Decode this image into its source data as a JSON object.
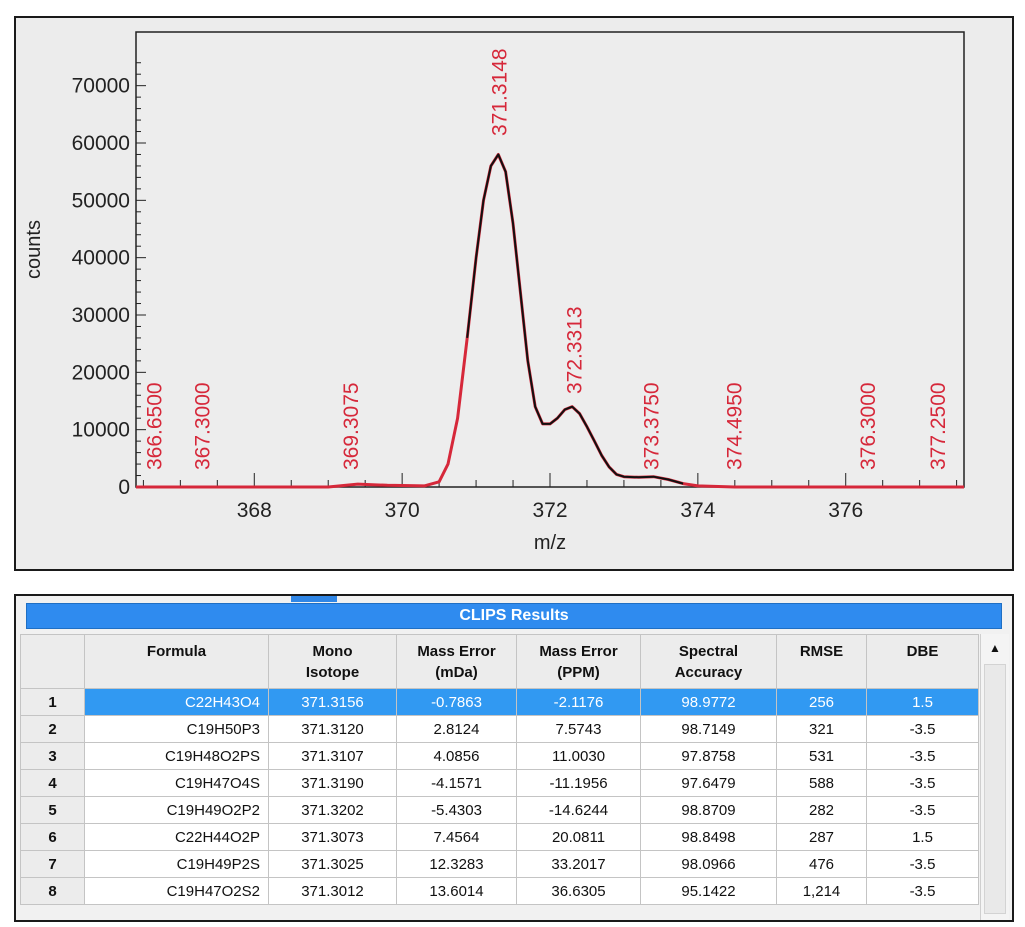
{
  "chart_data": {
    "type": "line",
    "xlabel": "m/z",
    "ylabel": "counts",
    "xlim": [
      366.4,
      377.6
    ],
    "ylim": [
      0,
      75000
    ],
    "x_ticks": [
      368,
      370,
      372,
      374,
      376
    ],
    "y_ticks": [
      0,
      10000,
      20000,
      30000,
      40000,
      50000,
      60000,
      70000
    ],
    "x_tick_labels": [
      "368",
      "370",
      "372",
      "374",
      "376"
    ],
    "y_tick_labels": [
      "0",
      "10000",
      "20000",
      "30000",
      "40000",
      "50000",
      "60000",
      "70000"
    ],
    "grid": false,
    "legend": "none",
    "series": [
      {
        "color": "#111111",
        "x": [
          366.4,
          369.0,
          369.4,
          369.8,
          370.3,
          370.5,
          370.62,
          370.75,
          370.88,
          371.0,
          371.1,
          371.2,
          371.3,
          371.4,
          371.5,
          371.6,
          371.7,
          371.8,
          371.9,
          372.0,
          372.1,
          372.2,
          372.3,
          372.4,
          372.5,
          372.6,
          372.7,
          372.8,
          372.9,
          373.0,
          373.2,
          373.4,
          373.6,
          373.8,
          374.0,
          374.5,
          375.0,
          377.6
        ],
        "y": [
          0,
          0,
          500,
          300,
          200,
          900,
          4000,
          12000,
          26000,
          40000,
          50000,
          56000,
          58000,
          55000,
          46000,
          34000,
          22000,
          14000,
          11000,
          11000,
          12000,
          13500,
          14000,
          12800,
          10500,
          8000,
          5500,
          3500,
          2200,
          1800,
          1700,
          1800,
          1300,
          600,
          200,
          0,
          0,
          0
        ]
      }
    ],
    "annotations": [
      {
        "label": "366.6500",
        "x": 366.65
      },
      {
        "label": "367.3000",
        "x": 367.3
      },
      {
        "label": "369.3075",
        "x": 369.3075
      },
      {
        "label": "371.3148",
        "x": 371.3148
      },
      {
        "label": "372.3313",
        "x": 372.3313
      },
      {
        "label": "373.3750",
        "x": 373.375
      },
      {
        "label": "374.4950",
        "x": 374.495
      },
      {
        "label": "376.3000",
        "x": 376.3
      },
      {
        "label": "377.2500",
        "x": 377.25
      }
    ],
    "annotation_color": "#d6283a"
  },
  "results": {
    "title": "CLIPS Results",
    "columns": [
      "",
      "Formula",
      "Mono\nIsotope",
      "Mass Error\n(mDa)",
      "Mass Error\n(PPM)",
      "Spectral\nAccuracy",
      "RMSE",
      "DBE"
    ],
    "rows": [
      [
        "1",
        "C22H43O4",
        "371.3156",
        "-0.7863",
        "-2.1176",
        "98.9772",
        "256",
        "1.5"
      ],
      [
        "2",
        "C19H50P3",
        "371.3120",
        "2.8124",
        "7.5743",
        "98.7149",
        "321",
        "-3.5"
      ],
      [
        "3",
        "C19H48O2PS",
        "371.3107",
        "4.0856",
        "11.0030",
        "97.8758",
        "531",
        "-3.5"
      ],
      [
        "4",
        "C19H47O4S",
        "371.3190",
        "-4.1571",
        "-11.1956",
        "97.6479",
        "588",
        "-3.5"
      ],
      [
        "5",
        "C19H49O2P2",
        "371.3202",
        "-5.4303",
        "-14.6244",
        "98.8709",
        "282",
        "-3.5"
      ],
      [
        "6",
        "C22H44O2P",
        "371.3073",
        "7.4564",
        "20.0811",
        "98.8498",
        "287",
        "1.5"
      ],
      [
        "7",
        "C19H49P2S",
        "371.3025",
        "12.3283",
        "33.2017",
        "98.0966",
        "476",
        "-3.5"
      ],
      [
        "8",
        "C19H47O2S2",
        "371.3012",
        "13.6014",
        "36.6305",
        "95.1422",
        "1,214",
        "-3.5"
      ]
    ],
    "selected_row": 0,
    "scroll_up_icon": "▲"
  },
  "colors": {
    "selection": "#3199f2",
    "title_bar": "#2f8bef",
    "trace_red": "#d6283a"
  }
}
